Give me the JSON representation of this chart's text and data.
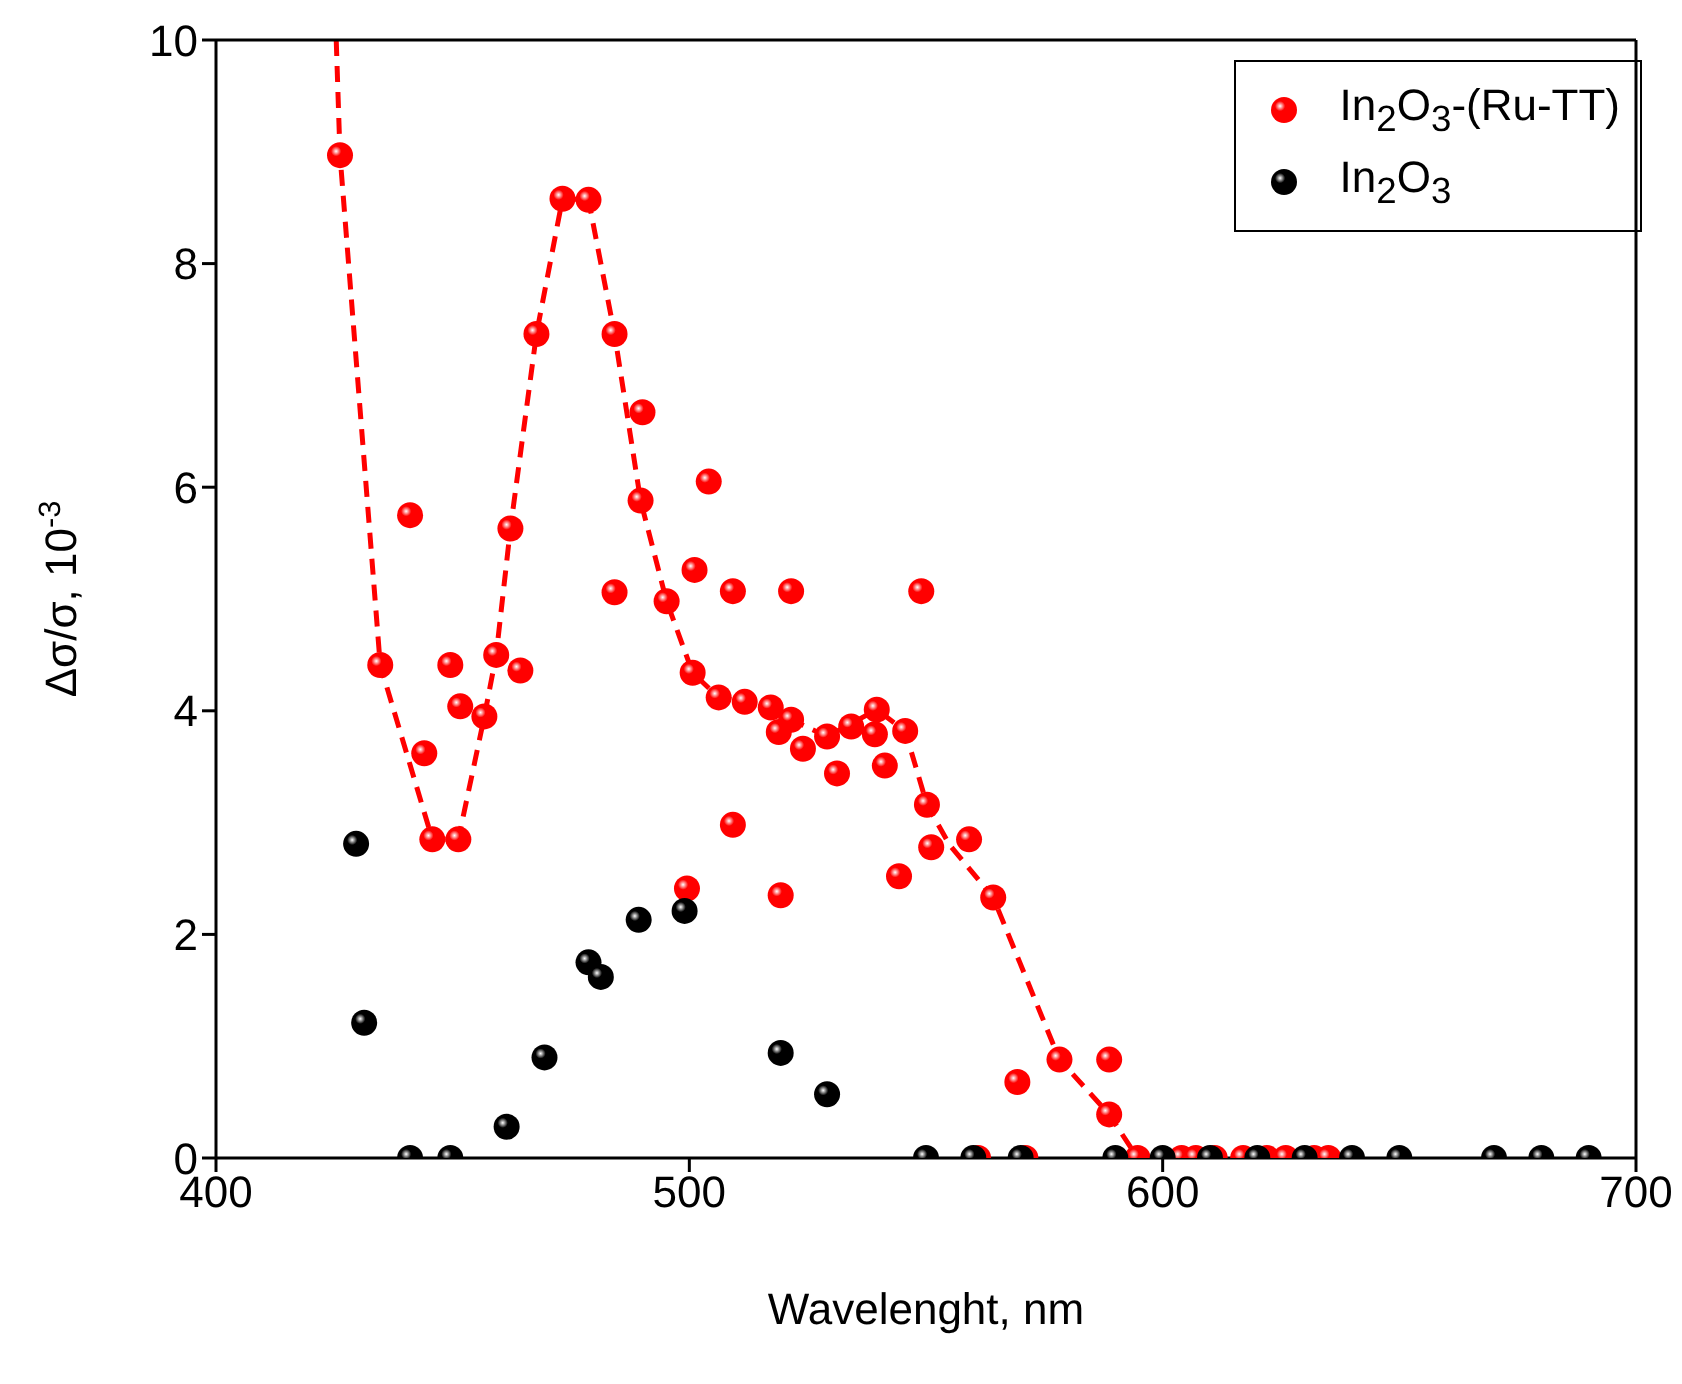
{
  "chart_data": {
    "type": "scatter",
    "xlabel": "Wavelenght, nm",
    "ylabel": "Δσ/σ, 10$^{-3}$",
    "xlim": [
      400,
      700
    ],
    "xticks": [
      400,
      500,
      600,
      700
    ],
    "ylim": [
      0,
      10
    ],
    "yticks": [
      0,
      2,
      4,
      6,
      8,
      10
    ],
    "legend": "top right",
    "marker": "circle",
    "series": [
      {
        "name": "In$_{2}$O$_{3}$-(Ru-TT)",
        "color": "#ff0000",
        "x": [
          426.2,
          434.7,
          441,
          444,
          445.7,
          449.5,
          451.2,
          451.6,
          456.7,
          459.2,
          462.2,
          464.3,
          467.7,
          473.2,
          478.7,
          484.2,
          484.2,
          489.7,
          490.1,
          495.2,
          499.5,
          500.7,
          501.1,
          504.1,
          506.2,
          509.2,
          509.2,
          511.7,
          517.2,
          518.9,
          519.3,
          521.5,
          521.5,
          524,
          529.1,
          531.2,
          534.2,
          539.2,
          539.6,
          541.3,
          544.3,
          545.6,
          549,
          550.2,
          551.1,
          559.1,
          561,
          564.2,
          569.3,
          571,
          578.2,
          588.7,
          588.7,
          594.7,
          604,
          607,
          611,
          617,
          622,
          626,
          632,
          635
        ],
        "values": [
          8.97,
          4.41,
          5.75,
          3.62,
          2.85,
          4.41,
          2.85,
          4.04,
          3.95,
          4.5,
          5.63,
          4.36,
          7.37,
          8.58,
          8.57,
          7.37,
          5.06,
          5.88,
          6.67,
          4.98,
          2.41,
          4.34,
          5.26,
          6.05,
          4.12,
          5.07,
          2.98,
          4.08,
          4.03,
          3.81,
          2.35,
          3.92,
          5.07,
          3.66,
          3.77,
          3.44,
          3.86,
          3.79,
          4.01,
          3.51,
          2.52,
          3.82,
          5.07,
          3.16,
          2.78,
          2.85,
          0,
          2.33,
          0.68,
          0,
          0.88,
          0.88,
          0.39,
          0,
          0,
          0,
          0,
          0,
          0,
          0,
          0,
          0
        ]
      },
      {
        "name": "In$_{2}$O$_{3}$",
        "color": "#000000",
        "x": [
          429.6,
          431.3,
          441,
          449.5,
          461.4,
          469.4,
          478.7,
          481.3,
          489.3,
          499,
          519.3,
          529.1,
          550,
          560,
          570,
          590,
          600,
          610,
          620,
          630,
          640,
          650,
          670,
          680,
          690
        ],
        "values": [
          2.81,
          1.21,
          0,
          0,
          0.28,
          0.9,
          1.75,
          1.62,
          2.13,
          2.21,
          0.94,
          0.57,
          0,
          0,
          0,
          0,
          0,
          0,
          0,
          0,
          0,
          0,
          0,
          0,
          0
        ]
      },
      {
        "type": "line",
        "color": "#ff0000",
        "marker": "none",
        "line_style": "dashed",
        "x": [
          425.4,
          426.2,
          434.7,
          445.7,
          451.2,
          456.7,
          459.2,
          462.2,
          467.7,
          473.2,
          478.7,
          484.2,
          489.7,
          495.2,
          500.7,
          506.2,
          511.7,
          517.2,
          521.5,
          529.1,
          539.6,
          545.6,
          550.2,
          555,
          564.2,
          578.2,
          588.7,
          594.7
        ],
        "values": [
          10,
          8.97,
          4.41,
          2.85,
          2.85,
          3.95,
          4.5,
          5.63,
          7.37,
          8.58,
          8.57,
          7.37,
          5.88,
          4.98,
          4.34,
          4.12,
          4.08,
          4.03,
          3.92,
          3.77,
          4.01,
          3.82,
          3.16,
          2.8,
          2.33,
          0.88,
          0.39,
          0
        ]
      }
    ]
  }
}
